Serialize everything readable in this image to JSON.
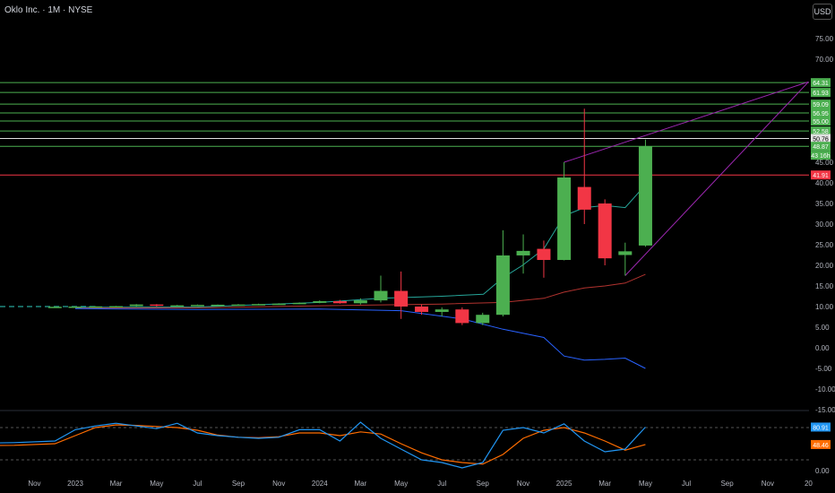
{
  "header": {
    "title": "Oklo Inc. · 1M · NYSE",
    "currency": "USD"
  },
  "chart_data": {
    "type": "candlestick",
    "x_ticks": [
      "Nov",
      "2023",
      "Mar",
      "May",
      "Jul",
      "Sep",
      "Nov",
      "2024",
      "Mar",
      "May",
      "Jul",
      "Sep",
      "Nov",
      "2025",
      "Mar",
      "May",
      "Jul",
      "Sep",
      "Nov",
      "20"
    ],
    "y_ticks": [
      75,
      70,
      45,
      40,
      35,
      30,
      25,
      20,
      15,
      10,
      5,
      0,
      -5,
      -10,
      -15
    ],
    "y_tick_labels": [
      "75.00",
      "70.00",
      "45.00",
      "40.00",
      "35.00",
      "30.00",
      "25.00",
      "20.00",
      "15.00",
      "10.00",
      "5.00",
      "0.00",
      "-5.00",
      "-10.00",
      "-15.00"
    ],
    "ylim": [
      -15,
      80
    ],
    "candles": [
      {
        "t": 2022.917,
        "o": 9.9,
        "h": 10.0,
        "l": 9.85,
        "c": 9.95
      },
      {
        "t": 2023.0,
        "o": 9.95,
        "h": 10.05,
        "l": 9.9,
        "c": 10.0
      },
      {
        "t": 2023.083,
        "o": 10.0,
        "h": 10.1,
        "l": 9.95,
        "c": 10.05
      },
      {
        "t": 2023.167,
        "o": 10.05,
        "h": 10.15,
        "l": 10.0,
        "c": 10.1
      },
      {
        "t": 2023.25,
        "o": 10.1,
        "h": 10.6,
        "l": 10.0,
        "c": 10.5
      },
      {
        "t": 2023.333,
        "o": 10.5,
        "h": 10.6,
        "l": 10.0,
        "c": 10.2
      },
      {
        "t": 2023.417,
        "o": 10.2,
        "h": 10.4,
        "l": 10.1,
        "c": 10.3
      },
      {
        "t": 2023.5,
        "o": 10.3,
        "h": 10.5,
        "l": 10.2,
        "c": 10.4
      },
      {
        "t": 2023.583,
        "o": 10.4,
        "h": 10.5,
        "l": 10.3,
        "c": 10.45
      },
      {
        "t": 2023.667,
        "o": 10.45,
        "h": 10.6,
        "l": 10.4,
        "c": 10.5
      },
      {
        "t": 2023.75,
        "o": 10.5,
        "h": 10.7,
        "l": 10.4,
        "c": 10.6
      },
      {
        "t": 2023.833,
        "o": 10.6,
        "h": 10.8,
        "l": 10.5,
        "c": 10.7
      },
      {
        "t": 2023.917,
        "o": 10.7,
        "h": 11.0,
        "l": 10.6,
        "c": 10.9
      },
      {
        "t": 2024.0,
        "o": 10.9,
        "h": 11.5,
        "l": 10.8,
        "c": 11.3
      },
      {
        "t": 2024.083,
        "o": 11.3,
        "h": 11.6,
        "l": 10.7,
        "c": 10.8
      },
      {
        "t": 2024.167,
        "o": 10.8,
        "h": 12.0,
        "l": 10.5,
        "c": 11.5
      },
      {
        "t": 2024.25,
        "o": 11.5,
        "h": 17.5,
        "l": 11.0,
        "c": 13.8
      },
      {
        "t": 2024.333,
        "o": 13.8,
        "h": 18.5,
        "l": 7.0,
        "c": 10.0
      },
      {
        "t": 2024.417,
        "o": 10.0,
        "h": 10.5,
        "l": 8.0,
        "c": 8.7
      },
      {
        "t": 2024.5,
        "o": 8.7,
        "h": 9.8,
        "l": 7.6,
        "c": 9.3
      },
      {
        "t": 2024.583,
        "o": 9.3,
        "h": 9.8,
        "l": 5.5,
        "c": 6.0
      },
      {
        "t": 2024.667,
        "o": 6.0,
        "h": 8.5,
        "l": 5.5,
        "c": 8.0
      },
      {
        "t": 2024.75,
        "o": 8.0,
        "h": 28.5,
        "l": 7.6,
        "c": 22.4
      },
      {
        "t": 2024.833,
        "o": 22.4,
        "h": 27.5,
        "l": 18.0,
        "c": 23.5
      },
      {
        "t": 2024.917,
        "o": 24.0,
        "h": 26.0,
        "l": 17.0,
        "c": 21.3
      },
      {
        "t": 2025.0,
        "o": 21.3,
        "h": 45.0,
        "l": 21.2,
        "c": 41.3
      },
      {
        "t": 2025.083,
        "o": 39.0,
        "h": 58.0,
        "l": 30.0,
        "c": 33.5
      },
      {
        "t": 2025.167,
        "o": 35.0,
        "h": 36.0,
        "l": 20.0,
        "c": 21.7
      },
      {
        "t": 2025.25,
        "o": 22.5,
        "h": 25.5,
        "l": 17.5,
        "c": 23.4
      },
      {
        "t": 2025.333,
        "o": 24.8,
        "h": 50.5,
        "l": 24.5,
        "c": 48.87
      }
    ],
    "overlay_lines": {
      "teal": [
        {
          "t": 2023.0,
          "v": 9.8
        },
        {
          "t": 2023.5,
          "v": 9.9
        },
        {
          "t": 2024.0,
          "v": 11.0
        },
        {
          "t": 2024.25,
          "v": 12.0
        },
        {
          "t": 2024.5,
          "v": 12.5
        },
        {
          "t": 2024.67,
          "v": 13.0
        },
        {
          "t": 2024.75,
          "v": 17.0
        },
        {
          "t": 2024.83,
          "v": 20.0
        },
        {
          "t": 2024.917,
          "v": 24.0
        },
        {
          "t": 2025.0,
          "v": 32.0
        },
        {
          "t": 2025.083,
          "v": 34.0
        },
        {
          "t": 2025.167,
          "v": 34.5
        },
        {
          "t": 2025.25,
          "v": 34.0
        },
        {
          "t": 2025.333,
          "v": 39.5
        }
      ],
      "red": [
        {
          "t": 2023.0,
          "v": 9.6
        },
        {
          "t": 2023.5,
          "v": 9.7
        },
        {
          "t": 2024.0,
          "v": 10.2
        },
        {
          "t": 2024.5,
          "v": 10.6
        },
        {
          "t": 2024.75,
          "v": 11.0
        },
        {
          "t": 2024.917,
          "v": 12.0
        },
        {
          "t": 2025.0,
          "v": 13.5
        },
        {
          "t": 2025.083,
          "v": 14.5
        },
        {
          "t": 2025.167,
          "v": 15.0
        },
        {
          "t": 2025.25,
          "v": 15.7
        },
        {
          "t": 2025.333,
          "v": 17.8
        }
      ],
      "blue": [
        {
          "t": 2023.0,
          "v": 9.5
        },
        {
          "t": 2023.5,
          "v": 9.3
        },
        {
          "t": 2024.0,
          "v": 9.4
        },
        {
          "t": 2024.333,
          "v": 9.0
        },
        {
          "t": 2024.583,
          "v": 7.0
        },
        {
          "t": 2024.75,
          "v": 4.5
        },
        {
          "t": 2024.917,
          "v": 2.5
        },
        {
          "t": 2025.0,
          "v": -2.0
        },
        {
          "t": 2025.083,
          "v": -3.0
        },
        {
          "t": 2025.167,
          "v": -2.8
        },
        {
          "t": 2025.25,
          "v": -2.5
        },
        {
          "t": 2025.333,
          "v": -5.0
        }
      ]
    },
    "trendlines": [
      {
        "from": {
          "t": 2025.0,
          "v": 45.0
        },
        "to": {
          "t": 2026.0,
          "v": 64.5
        }
      },
      {
        "from": {
          "t": 2025.25,
          "v": 17.5
        },
        "to": {
          "t": 2026.0,
          "v": 64.5
        }
      }
    ],
    "horizontal_levels": [
      {
        "value": 64.31,
        "label": "64.31",
        "color": "#4caf50"
      },
      {
        "value": 61.93,
        "label": "61.93",
        "color": "#4caf50"
      },
      {
        "value": 59.09,
        "label": "59.09",
        "color": "#4caf50"
      },
      {
        "value": 56.95,
        "label": "56.95",
        "color": "#4caf50"
      },
      {
        "value": 55.0,
        "label": "55.00",
        "color": "#4caf50"
      },
      {
        "value": 52.58,
        "label": "52.58",
        "color": "#4caf50"
      },
      {
        "value": 50.76,
        "label": "50.76",
        "color": "#e0e0e0"
      },
      {
        "value": 48.87,
        "label": "48.87",
        "color": "#4caf50"
      },
      {
        "value": 41.91,
        "label": "41.91",
        "color": "#f23645"
      }
    ],
    "price_label_secondary": "43 16h",
    "oscillator": {
      "ylim": [
        0,
        100
      ],
      "y_ticks": [
        0
      ],
      "y_tick_labels": [
        "0.00"
      ],
      "dashed_levels": [
        80,
        20
      ],
      "k_label": "80.91",
      "d_label": "48.46",
      "k": [
        {
          "t": 2022.5,
          "v": 50
        },
        {
          "t": 2022.75,
          "v": 52
        },
        {
          "t": 2022.917,
          "v": 55
        },
        {
          "t": 2023.0,
          "v": 76
        },
        {
          "t": 2023.083,
          "v": 83
        },
        {
          "t": 2023.167,
          "v": 88
        },
        {
          "t": 2023.25,
          "v": 83
        },
        {
          "t": 2023.333,
          "v": 78
        },
        {
          "t": 2023.417,
          "v": 88
        },
        {
          "t": 2023.5,
          "v": 70
        },
        {
          "t": 2023.583,
          "v": 65
        },
        {
          "t": 2023.667,
          "v": 62
        },
        {
          "t": 2023.75,
          "v": 60
        },
        {
          "t": 2023.833,
          "v": 62
        },
        {
          "t": 2023.917,
          "v": 76
        },
        {
          "t": 2024.0,
          "v": 76
        },
        {
          "t": 2024.083,
          "v": 55
        },
        {
          "t": 2024.167,
          "v": 90
        },
        {
          "t": 2024.25,
          "v": 60
        },
        {
          "t": 2024.333,
          "v": 40
        },
        {
          "t": 2024.417,
          "v": 20
        },
        {
          "t": 2024.5,
          "v": 15
        },
        {
          "t": 2024.583,
          "v": 5
        },
        {
          "t": 2024.667,
          "v": 15
        },
        {
          "t": 2024.75,
          "v": 75
        },
        {
          "t": 2024.833,
          "v": 80
        },
        {
          "t": 2024.917,
          "v": 70
        },
        {
          "t": 2025.0,
          "v": 87
        },
        {
          "t": 2025.083,
          "v": 55
        },
        {
          "t": 2025.167,
          "v": 35
        },
        {
          "t": 2025.25,
          "v": 40
        },
        {
          "t": 2025.333,
          "v": 80.91
        }
      ],
      "d": [
        {
          "t": 2022.5,
          "v": 46
        },
        {
          "t": 2022.75,
          "v": 47
        },
        {
          "t": 2022.917,
          "v": 50
        },
        {
          "t": 2023.0,
          "v": 65
        },
        {
          "t": 2023.083,
          "v": 80
        },
        {
          "t": 2023.167,
          "v": 85
        },
        {
          "t": 2023.25,
          "v": 84
        },
        {
          "t": 2023.333,
          "v": 82
        },
        {
          "t": 2023.417,
          "v": 80
        },
        {
          "t": 2023.5,
          "v": 75
        },
        {
          "t": 2023.583,
          "v": 66
        },
        {
          "t": 2023.667,
          "v": 62
        },
        {
          "t": 2023.75,
          "v": 61
        },
        {
          "t": 2023.833,
          "v": 63
        },
        {
          "t": 2023.917,
          "v": 70
        },
        {
          "t": 2024.0,
          "v": 70
        },
        {
          "t": 2024.083,
          "v": 65
        },
        {
          "t": 2024.167,
          "v": 72
        },
        {
          "t": 2024.25,
          "v": 68
        },
        {
          "t": 2024.333,
          "v": 50
        },
        {
          "t": 2024.417,
          "v": 33
        },
        {
          "t": 2024.5,
          "v": 20
        },
        {
          "t": 2024.583,
          "v": 15
        },
        {
          "t": 2024.667,
          "v": 12
        },
        {
          "t": 2024.75,
          "v": 30
        },
        {
          "t": 2024.833,
          "v": 60
        },
        {
          "t": 2024.917,
          "v": 75
        },
        {
          "t": 2025.0,
          "v": 80
        },
        {
          "t": 2025.083,
          "v": 70
        },
        {
          "t": 2025.167,
          "v": 55
        },
        {
          "t": 2025.25,
          "v": 38
        },
        {
          "t": 2025.333,
          "v": 48.46
        }
      ]
    }
  },
  "colors": {
    "up": "#4caf50",
    "down": "#f23645",
    "teal": "#26a69a",
    "red_line": "#b2332f",
    "blue_line": "#2962ff",
    "trend": "#9c27b0",
    "osc_k": "#2196f3",
    "osc_d": "#ff6d00",
    "grid": "#1a1a1a",
    "text": "#b2b5be"
  }
}
